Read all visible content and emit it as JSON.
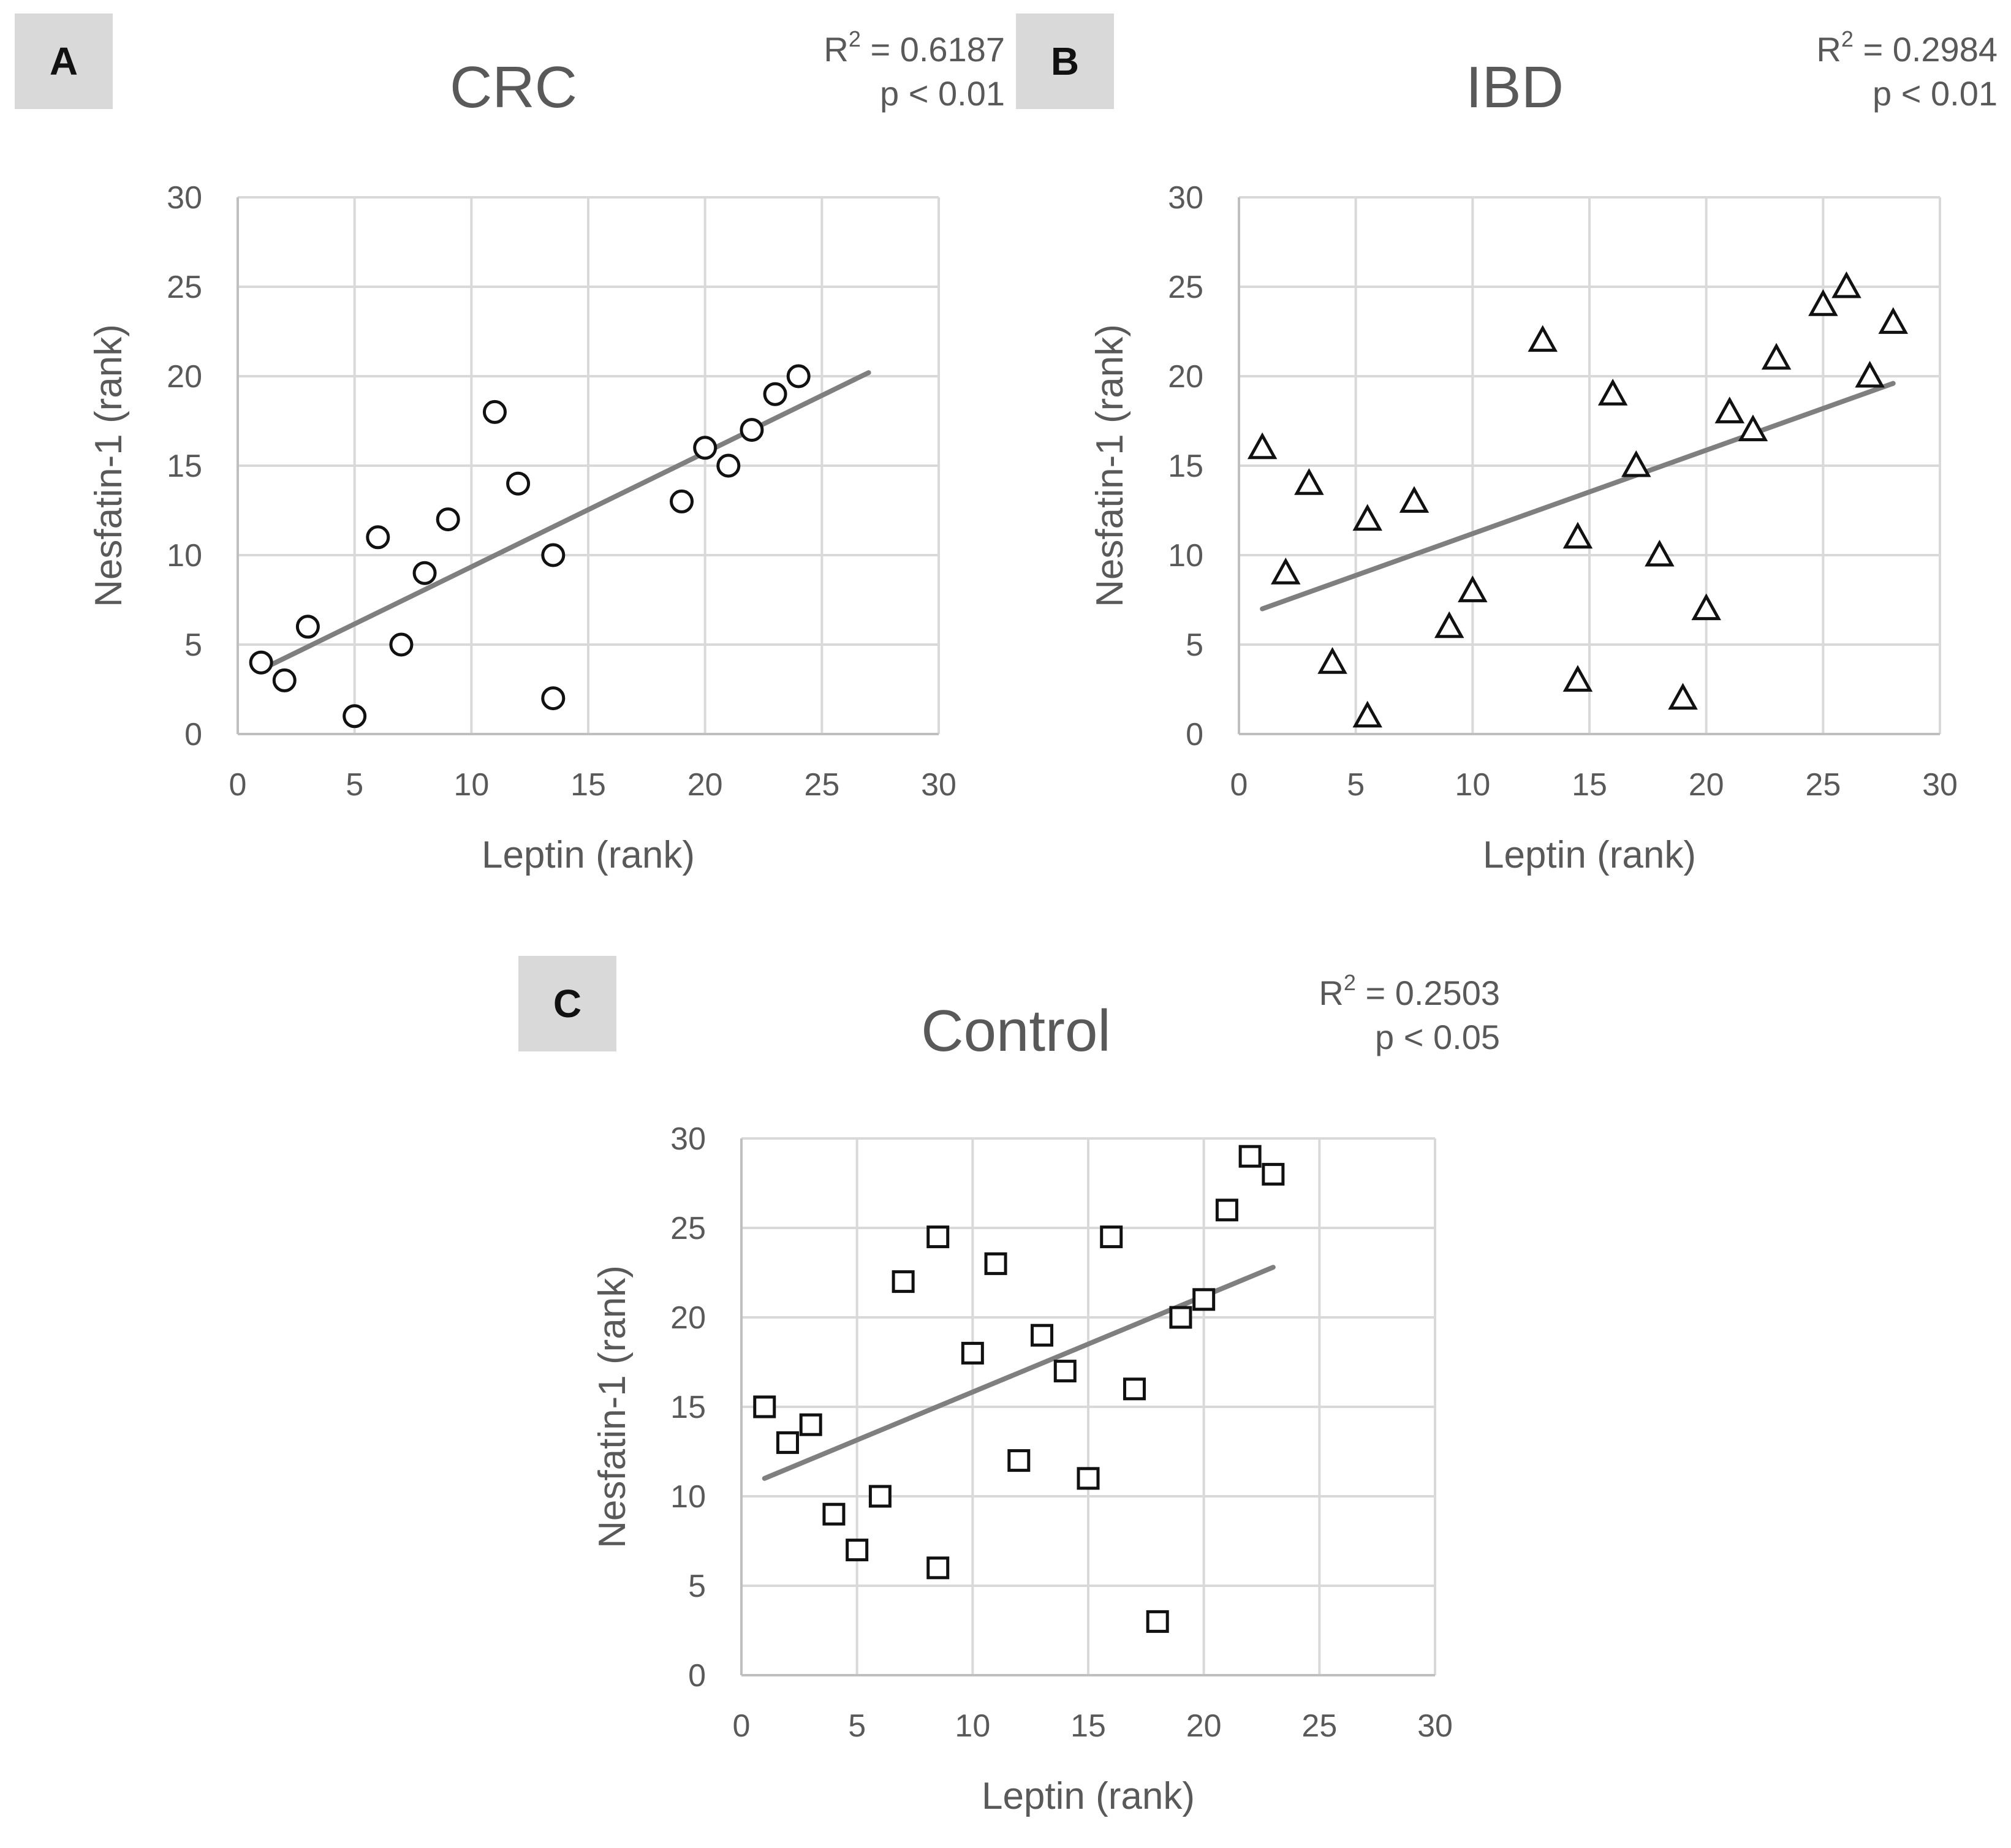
{
  "colors": {
    "grid": "#d9d9d9",
    "axis": "#bfbfbf",
    "text": "#595959",
    "trendline": "#7f7f7f",
    "marker": "#111111",
    "label_box": "#d9d9d9"
  },
  "chart_data": [
    {
      "type": "scatter",
      "panel": "A",
      "title": "CRC",
      "r2_label": "R",
      "r2_sup": "2",
      "r2_value": " = 0.6187",
      "p_label": "p < 0.01",
      "xlabel": "Leptin (rank)",
      "ylabel": "Nesfatin-1 (rank)",
      "xlim": [
        0,
        30
      ],
      "ylim": [
        0,
        30
      ],
      "xticks": [
        0,
        5,
        10,
        15,
        20,
        25,
        30
      ],
      "yticks": [
        0,
        5,
        10,
        15,
        20,
        25,
        30
      ],
      "marker": "circle",
      "points": [
        [
          1,
          4
        ],
        [
          2,
          3
        ],
        [
          3,
          6
        ],
        [
          5,
          1
        ],
        [
          6,
          11
        ],
        [
          7,
          5
        ],
        [
          8,
          9
        ],
        [
          9,
          12
        ],
        [
          11,
          18
        ],
        [
          12,
          14
        ],
        [
          13.5,
          10
        ],
        [
          13.5,
          2
        ],
        [
          19,
          13
        ],
        [
          20,
          16
        ],
        [
          21,
          15
        ],
        [
          22,
          17
        ],
        [
          23,
          19
        ],
        [
          24,
          20
        ]
      ],
      "trend": [
        [
          1,
          3.6
        ],
        [
          27,
          20.2
        ]
      ]
    },
    {
      "type": "scatter",
      "panel": "B",
      "title": "IBD",
      "r2_label": "R",
      "r2_sup": "2",
      "r2_value": " = 0.2984",
      "p_label": "p < 0.01",
      "xlabel": "Leptin (rank)",
      "ylabel": "Nesfatin-1 (rank)",
      "xlim": [
        0,
        30
      ],
      "ylim": [
        0,
        30
      ],
      "xticks": [
        0,
        5,
        10,
        15,
        20,
        25,
        30
      ],
      "yticks": [
        0,
        5,
        10,
        15,
        20,
        25,
        30
      ],
      "marker": "triangle",
      "points": [
        [
          1,
          16
        ],
        [
          2,
          9
        ],
        [
          3,
          14
        ],
        [
          4,
          4
        ],
        [
          5.5,
          12
        ],
        [
          5.5,
          1
        ],
        [
          7.5,
          13
        ],
        [
          9,
          6
        ],
        [
          10,
          8
        ],
        [
          13,
          22
        ],
        [
          14.5,
          11
        ],
        [
          14.5,
          3
        ],
        [
          16,
          19
        ],
        [
          17,
          15
        ],
        [
          18,
          10
        ],
        [
          19,
          2
        ],
        [
          20,
          7
        ],
        [
          21,
          18
        ],
        [
          22,
          17
        ],
        [
          23,
          21
        ],
        [
          25,
          24
        ],
        [
          26,
          25
        ],
        [
          27,
          20
        ],
        [
          28,
          23
        ]
      ],
      "trend": [
        [
          1,
          7
        ],
        [
          28,
          19.6
        ]
      ]
    },
    {
      "type": "scatter",
      "panel": "C",
      "title": "Control",
      "r2_label": "R",
      "r2_sup": "2",
      "r2_value": " = 0.2503",
      "p_label": "p < 0.05",
      "xlabel": "Leptin (rank)",
      "ylabel": "Nesfatin-1 (rank)",
      "xlim": [
        0,
        30
      ],
      "ylim": [
        0,
        30
      ],
      "xticks": [
        0,
        5,
        10,
        15,
        20,
        25,
        30
      ],
      "yticks": [
        0,
        5,
        10,
        15,
        20,
        25,
        30
      ],
      "marker": "square",
      "points": [
        [
          1,
          15
        ],
        [
          2,
          13
        ],
        [
          3,
          14
        ],
        [
          4,
          9
        ],
        [
          5,
          7
        ],
        [
          6,
          10
        ],
        [
          7,
          22
        ],
        [
          8.5,
          24.5
        ],
        [
          8.5,
          6
        ],
        [
          10,
          18
        ],
        [
          11,
          23
        ],
        [
          12,
          12
        ],
        [
          13,
          19
        ],
        [
          14,
          17
        ],
        [
          15,
          11
        ],
        [
          16,
          24.5
        ],
        [
          17,
          16
        ],
        [
          18,
          3
        ],
        [
          19,
          20
        ],
        [
          20,
          21
        ],
        [
          21,
          26
        ],
        [
          22,
          29
        ],
        [
          23,
          28
        ]
      ],
      "trend": [
        [
          1,
          11
        ],
        [
          23,
          22.8
        ]
      ]
    }
  ]
}
